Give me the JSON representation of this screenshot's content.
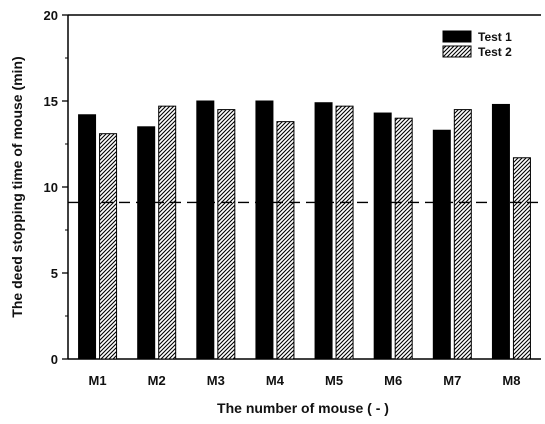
{
  "chart_data": {
    "type": "bar",
    "title": "",
    "xlabel": "The number of mouse ( - )",
    "ylabel": "The deed stopping time of mouse (min)",
    "ylim": [
      0,
      20
    ],
    "yticks": [
      0,
      5,
      10,
      15,
      20
    ],
    "categories": [
      "M1",
      "M2",
      "M3",
      "M4",
      "M5",
      "M6",
      "M7",
      "M8"
    ],
    "series": [
      {
        "name": "Test 1",
        "color": "#000000",
        "pattern": "solid",
        "values": [
          14.2,
          13.5,
          15.0,
          15.0,
          14.9,
          14.3,
          13.3,
          14.8
        ]
      },
      {
        "name": "Test 2",
        "color": "#000000",
        "pattern": "hatch",
        "values": [
          13.1,
          14.7,
          14.5,
          13.8,
          14.7,
          14.0,
          14.5,
          11.7
        ]
      }
    ],
    "reference_line": {
      "y": 9.1,
      "style": "dashed"
    },
    "legend": {
      "position": "top-right"
    },
    "grid": false
  }
}
